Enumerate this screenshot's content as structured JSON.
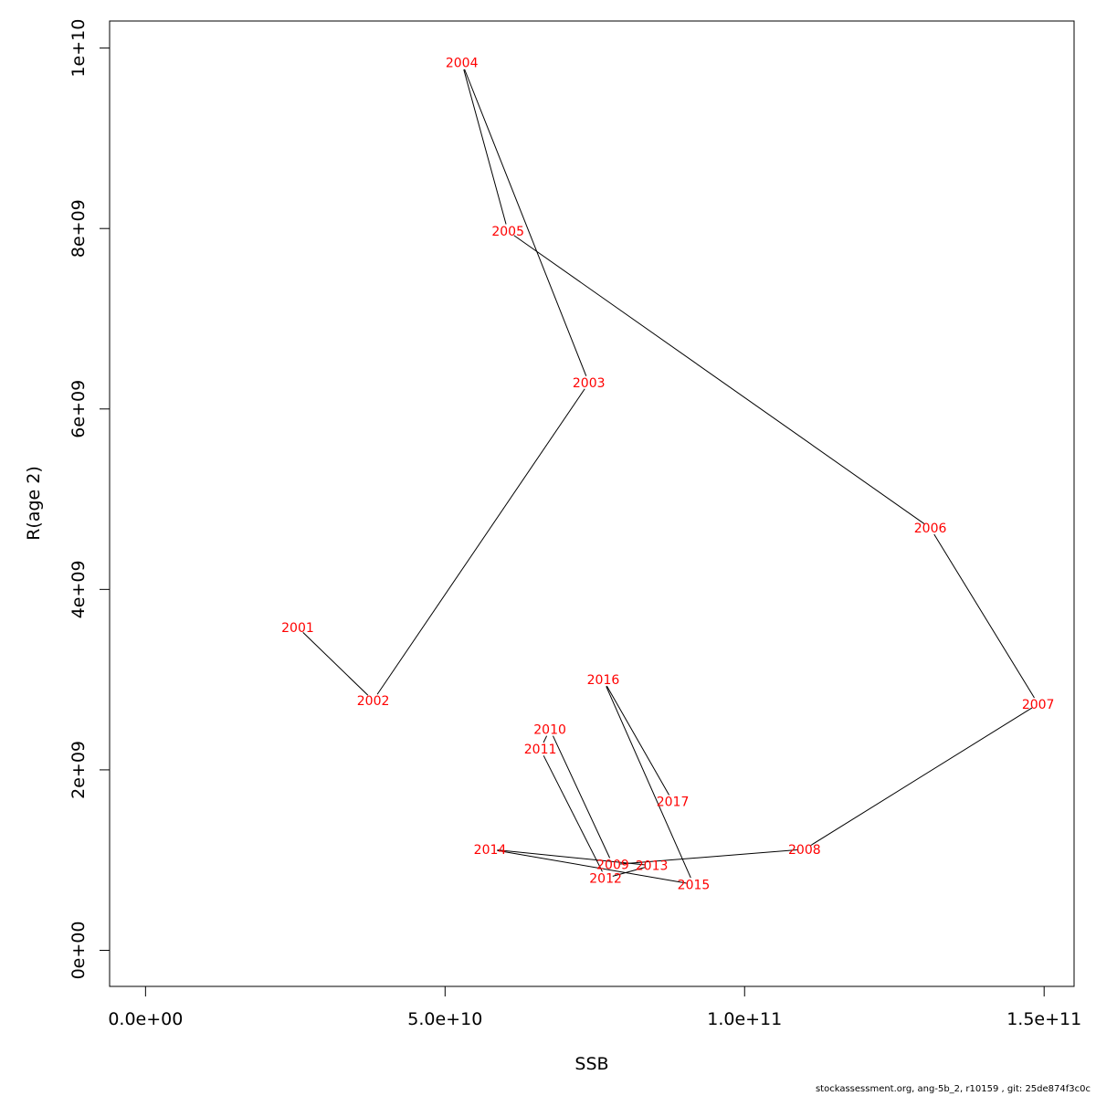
{
  "chart_data": {
    "type": "scatter",
    "xlabel": "SSB",
    "ylabel": "R(age 2)",
    "xlim": [
      -6000000000.0,
      155000000000.0
    ],
    "ylim": [
      -400000000.0,
      10300000000.0
    ],
    "x_ticks": [
      0,
      50000000000,
      100000000000,
      150000000000
    ],
    "x_tick_labels": [
      "0.0e+00",
      "5.0e+10",
      "1.0e+11",
      "1.5e+11"
    ],
    "y_ticks": [
      0,
      2000000000,
      4000000000,
      6000000000,
      8000000000,
      10000000000
    ],
    "y_tick_labels": [
      "0e+00",
      "2e+09",
      "4e+09",
      "6e+09",
      "8e+09",
      "1e+10"
    ],
    "label_color": "#ff0000",
    "line_color": "#000000",
    "points": [
      {
        "year": "2001",
        "x": 25400000000,
        "y": 3580000000
      },
      {
        "year": "2002",
        "x": 38000000000,
        "y": 2770000000
      },
      {
        "year": "2003",
        "x": 74000000000,
        "y": 6290000000
      },
      {
        "year": "2004",
        "x": 52800000000,
        "y": 9840000000
      },
      {
        "year": "2005",
        "x": 60500000000,
        "y": 7970000000
      },
      {
        "year": "2006",
        "x": 131000000000,
        "y": 4680000000
      },
      {
        "year": "2007",
        "x": 149000000000,
        "y": 2730000000
      },
      {
        "year": "2008",
        "x": 110000000000,
        "y": 1120000000
      },
      {
        "year": "2009",
        "x": 78000000000,
        "y": 950000000
      },
      {
        "year": "2010",
        "x": 67500000000,
        "y": 2450000000
      },
      {
        "year": "2011",
        "x": 65900000000,
        "y": 2230000000
      },
      {
        "year": "2012",
        "x": 76800000000,
        "y": 800000000
      },
      {
        "year": "2013",
        "x": 84500000000,
        "y": 940000000
      },
      {
        "year": "2014",
        "x": 57500000000,
        "y": 1120000000
      },
      {
        "year": "2015",
        "x": 91500000000,
        "y": 730000000
      },
      {
        "year": "2016",
        "x": 76400000000,
        "y": 3000000000
      },
      {
        "year": "2017",
        "x": 88000000000,
        "y": 1650000000
      }
    ]
  },
  "footer_text": "stockassessment.org, ang-5b_2, r10159 , git: 25de874f3c0c"
}
